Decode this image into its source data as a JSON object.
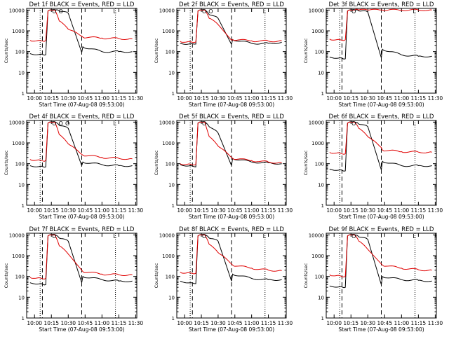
{
  "colors": {
    "events": "#000000",
    "lld": "#e00000",
    "axis": "#000000",
    "background": "#ffffff"
  },
  "shared": {
    "xlabel": "Start Time (07-Aug-08 09:53:00)",
    "ylabel": "Counts/sec",
    "x_ticks": [
      "10:00",
      "10:15",
      "10:30",
      "10:45",
      "11:00",
      "11:15",
      "11:30"
    ],
    "y_ticks": [
      "1",
      "10",
      "100",
      "1000",
      "10000"
    ]
  },
  "chart_data": [
    {
      "type": "line",
      "title": "Det 1f BLACK = Events, RED = LLD",
      "x": [
        "09:56",
        "10:05",
        "10:10",
        "10:12",
        "10:18",
        "10:22",
        "10:30",
        "10:42",
        "10:43",
        "11:00",
        "11:15",
        "11:27"
      ],
      "xlim": [
        "09:53",
        "11:31"
      ],
      "ylim": [
        1,
        12000
      ],
      "yscale": "log",
      "series": [
        {
          "values": [
            80,
            75,
            70,
            9000,
            10000,
            9000,
            7000,
            90,
            170,
            100,
            100,
            100
          ]
        },
        {
          "values": [
            350,
            340,
            340,
            9000,
            10000,
            3000,
            1200,
            550,
            500,
            450,
            420,
            410
          ]
        }
      ],
      "annotations": {
        "dotted_lines": [
          "10:05",
          "11:12"
        ],
        "dashed_lines": [
          "10:07",
          "10:42"
        ],
        "markers": [
          "O",
          "O",
          "L"
        ]
      }
    },
    {
      "type": "line",
      "title": "Det 2f BLACK = Events, RED = LLD",
      "x": [
        "09:56",
        "10:05",
        "10:10",
        "10:12",
        "10:18",
        "10:22",
        "10:30",
        "10:42",
        "10:43",
        "11:00",
        "11:15",
        "11:27"
      ],
      "xlim": [
        "09:53",
        "11:31"
      ],
      "ylim": [
        1,
        12000
      ],
      "yscale": "log",
      "series": [
        {
          "values": [
            250,
            240,
            230,
            9000,
            10000,
            6000,
            4000,
            220,
            380,
            250,
            250,
            280
          ]
        },
        {
          "values": [
            310,
            300,
            290,
            9000,
            10000,
            4000,
            2000,
            350,
            380,
            330,
            320,
            330
          ]
        }
      ],
      "annotations": {
        "dotted_lines": [
          "10:05",
          "11:12"
        ],
        "dashed_lines": [
          "10:07",
          "10:42"
        ],
        "markers": [
          "O",
          "O",
          "L"
        ]
      }
    },
    {
      "type": "line",
      "title": "Det 3f BLACK = Events, RED = LLD",
      "x": [
        "09:56",
        "10:05",
        "10:10",
        "10:12",
        "10:18",
        "10:22",
        "10:30",
        "10:42",
        "10:43",
        "11:00",
        "11:15",
        "11:27"
      ],
      "xlim": [
        "09:53",
        "11:31"
      ],
      "ylim": [
        1,
        12000
      ],
      "yscale": "log",
      "series": [
        {
          "values": [
            55,
            50,
            45,
            9000,
            10000,
            9000,
            8000,
            50,
            130,
            70,
            60,
            60
          ]
        },
        {
          "values": [
            400,
            380,
            370,
            9000,
            10000,
            10000,
            10000,
            10000,
            10000,
            10000,
            10000,
            10000
          ]
        }
      ],
      "annotations": {
        "dotted_lines": [
          "10:05",
          "11:12"
        ],
        "dashed_lines": [
          "10:07",
          "10:42"
        ],
        "markers": [
          "O",
          "L"
        ]
      }
    },
    {
      "type": "line",
      "title": "Det 4f BLACK = Events, RED = LLD",
      "x": [
        "09:56",
        "10:05",
        "10:10",
        "10:12",
        "10:18",
        "10:22",
        "10:30",
        "10:42",
        "10:43",
        "11:00",
        "11:15",
        "11:27"
      ],
      "xlim": [
        "09:53",
        "11:31"
      ],
      "ylim": [
        1,
        12000
      ],
      "yscale": "log",
      "series": [
        {
          "values": [
            80,
            75,
            70,
            9000,
            10000,
            7000,
            5000,
            80,
            120,
            90,
            80,
            80
          ]
        },
        {
          "values": [
            160,
            150,
            140,
            9000,
            10000,
            2500,
            900,
            280,
            260,
            200,
            180,
            170
          ]
        }
      ],
      "annotations": {
        "dotted_lines": [
          "10:05",
          "11:12"
        ],
        "dashed_lines": [
          "10:07",
          "10:42"
        ],
        "markers": [
          "O",
          "O",
          "O",
          "L"
        ]
      }
    },
    {
      "type": "line",
      "title": "Det 5f BLACK = Events, RED = LLD",
      "x": [
        "09:56",
        "10:05",
        "10:10",
        "10:12",
        "10:18",
        "10:22",
        "10:30",
        "10:42",
        "10:43",
        "11:00",
        "11:15",
        "11:27"
      ],
      "xlim": [
        "09:53",
        "11:31"
      ],
      "ylim": [
        1,
        12000
      ],
      "yscale": "log",
      "series": [
        {
          "values": [
            90,
            80,
            70,
            9000,
            10000,
            6000,
            3000,
            80,
            180,
            120,
            110,
            100
          ]
        },
        {
          "values": [
            100,
            95,
            90,
            9000,
            10000,
            2000,
            700,
            200,
            180,
            140,
            120,
            110
          ]
        }
      ],
      "annotations": {
        "dotted_lines": [
          "10:05",
          "11:12"
        ],
        "dashed_lines": [
          "10:07",
          "10:42"
        ],
        "markers": [
          "O",
          "L"
        ]
      }
    },
    {
      "type": "line",
      "title": "Det 6f BLACK = Events, RED = LLD",
      "x": [
        "09:56",
        "10:05",
        "10:10",
        "10:12",
        "10:18",
        "10:22",
        "10:30",
        "10:42",
        "10:43",
        "11:00",
        "11:15",
        "11:27"
      ],
      "xlim": [
        "09:53",
        "11:31"
      ],
      "ylim": [
        1,
        12000
      ],
      "yscale": "log",
      "series": [
        {
          "values": [
            55,
            50,
            45,
            9000,
            10000,
            8000,
            6000,
            50,
            130,
            80,
            80,
            80
          ]
        },
        {
          "values": [
            350,
            330,
            300,
            9000,
            10000,
            5000,
            2000,
            600,
            450,
            380,
            360,
            360
          ]
        }
      ],
      "annotations": {
        "dotted_lines": [
          "10:05",
          "11:12"
        ],
        "dashed_lines": [
          "10:07",
          "10:42"
        ],
        "markers": [
          "O",
          "L"
        ]
      }
    },
    {
      "type": "line",
      "title": "Det 7f BLACK = Events, RED = LLD",
      "x": [
        "09:56",
        "10:05",
        "10:10",
        "10:12",
        "10:18",
        "10:22",
        "10:30",
        "10:42",
        "10:43",
        "11:00",
        "11:15",
        "11:27"
      ],
      "xlim": [
        "09:53",
        "11:31"
      ],
      "ylim": [
        1,
        12000
      ],
      "yscale": "log",
      "series": [
        {
          "values": [
            50,
            45,
            40,
            9000,
            10000,
            7000,
            5000,
            50,
            100,
            70,
            60,
            60
          ]
        },
        {
          "values": [
            90,
            85,
            80,
            9000,
            10000,
            3000,
            1200,
            200,
            170,
            130,
            120,
            120
          ]
        }
      ],
      "annotations": {
        "dotted_lines": [
          "10:05",
          "11:12"
        ],
        "dashed_lines": [
          "10:07",
          "10:42"
        ],
        "markers": [
          "O",
          "L"
        ]
      }
    },
    {
      "type": "line",
      "title": "Det 8f BLACK = Events, RED = LLD",
      "x": [
        "09:56",
        "10:05",
        "10:10",
        "10:12",
        "10:18",
        "10:22",
        "10:30",
        "10:42",
        "10:43",
        "11:00",
        "11:15",
        "11:27"
      ],
      "xlim": [
        "09:53",
        "11:31"
      ],
      "ylim": [
        1,
        12000
      ],
      "yscale": "log",
      "series": [
        {
          "values": [
            60,
            50,
            45,
            9000,
            10000,
            7000,
            5000,
            60,
            130,
            80,
            70,
            70
          ]
        },
        {
          "values": [
            160,
            150,
            140,
            9000,
            10000,
            3500,
            1400,
            400,
            350,
            250,
            200,
            190
          ]
        }
      ],
      "annotations": {
        "dotted_lines": [
          "10:05",
          "11:12"
        ],
        "dashed_lines": [
          "10:07",
          "10:42"
        ],
        "markers": [
          "O",
          "L"
        ]
      }
    },
    {
      "type": "line",
      "title": "Det 9f BLACK = Events, RED = LLD",
      "x": [
        "09:56",
        "10:05",
        "10:10",
        "10:12",
        "10:18",
        "10:22",
        "10:30",
        "10:42",
        "10:43",
        "11:00",
        "11:15",
        "11:27"
      ],
      "xlim": [
        "09:53",
        "11:31"
      ],
      "ylim": [
        1,
        12000
      ],
      "yscale": "log",
      "series": [
        {
          "values": [
            35,
            32,
            30,
            9000,
            10000,
            8000,
            6000,
            40,
            100,
            70,
            65,
            60
          ]
        },
        {
          "values": [
            120,
            110,
            100,
            9000,
            10000,
            5000,
            2000,
            400,
            350,
            250,
            210,
            200
          ]
        }
      ],
      "annotations": {
        "dotted_lines": [
          "10:05",
          "11:12"
        ],
        "dashed_lines": [
          "10:07",
          "10:42"
        ],
        "markers": [
          "O",
          "L"
        ]
      }
    }
  ]
}
